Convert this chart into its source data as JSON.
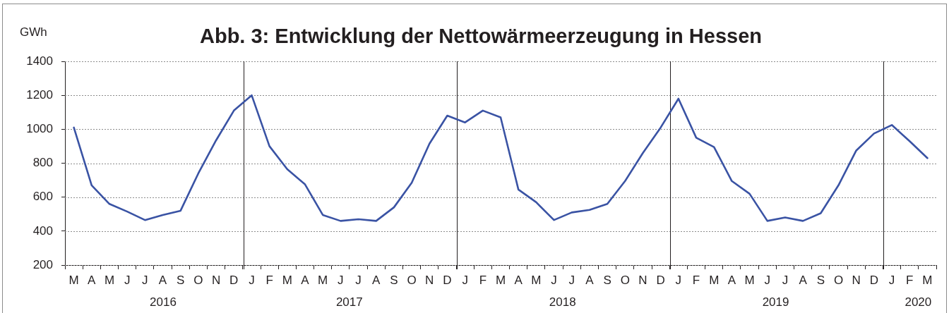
{
  "chart_data": {
    "type": "line",
    "title": "Abb. 3: Entwicklung der Nettowärmeerzeugung in Hessen",
    "ylabel": "GWh",
    "categories": [
      "M",
      "A",
      "M",
      "J",
      "J",
      "A",
      "S",
      "O",
      "N",
      "D",
      "J",
      "F",
      "M",
      "A",
      "M",
      "J",
      "J",
      "A",
      "S",
      "O",
      "N",
      "D",
      "J",
      "F",
      "M",
      "A",
      "M",
      "J",
      "J",
      "A",
      "S",
      "O",
      "N",
      "D",
      "J",
      "F",
      "M",
      "A",
      "M",
      "J",
      "J",
      "A",
      "S",
      "O",
      "N",
      "D",
      "J",
      "F",
      "M"
    ],
    "values": [
      1010,
      670,
      560,
      515,
      465,
      495,
      520,
      740,
      935,
      1110,
      1200,
      900,
      765,
      675,
      495,
      460,
      470,
      460,
      540,
      685,
      915,
      1080,
      1040,
      1110,
      1070,
      645,
      570,
      465,
      510,
      525,
      560,
      695,
      860,
      1010,
      1180,
      950,
      895,
      695,
      620,
      460,
      480,
      460,
      505,
      670,
      875,
      975,
      1025,
      930,
      830
    ],
    "color": "#3a53a4",
    "marker": "none",
    "line_style": "solid",
    "ylim": [
      200,
      1400
    ],
    "yticks": [
      200,
      400,
      600,
      800,
      1000,
      1200,
      1400
    ],
    "grid": true,
    "x2lim": [
      "2016-03-01",
      "2020-04-01"
    ],
    "x2ticks": [
      {
        "value": "2016-08-16",
        "label": "2016"
      },
      {
        "value": "2017-01-01",
        "label": null
      },
      {
        "value": "2017-07-01",
        "label": "2017"
      },
      {
        "value": "2018-01-01",
        "label": null
      },
      {
        "value": "2018-07-01",
        "label": "2018"
      },
      {
        "value": "2019-01-01",
        "label": null
      },
      {
        "value": "2019-07-01",
        "label": "2019"
      },
      {
        "value": "2020-01-01",
        "label": null
      },
      {
        "value": "2020-03-01",
        "label": "2020"
      }
    ]
  }
}
